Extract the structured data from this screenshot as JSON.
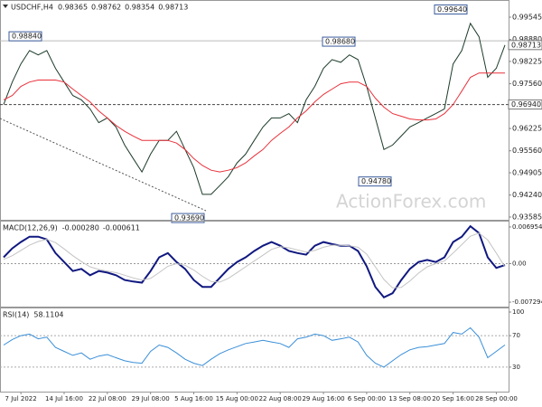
{
  "chart_data": [
    {
      "type": "line",
      "title": "USDCHF,H4",
      "ohlc": [
        0.98365,
        0.98762,
        0.98354,
        0.98713
      ],
      "watermark": "ActionForex.com",
      "categories": [
        null,
        null,
        "7 Jul 2022",
        null,
        null,
        null,
        null,
        "14 Jul 16:00",
        null,
        null,
        null,
        null,
        "22 Jul 08:00",
        null,
        null,
        null,
        null,
        "29 Jul 08:00",
        null,
        null,
        null,
        null,
        "5 Aug 16:00",
        null,
        null,
        null,
        null,
        "15 Aug 00:00",
        null,
        null,
        null,
        null,
        "22 Aug 08:00",
        null,
        null,
        null,
        null,
        "29 Aug 16:00",
        null,
        null,
        null,
        null,
        "6 Sep 00:00",
        null,
        null,
        null,
        null,
        "13 Sep 08:00",
        null,
        null,
        null,
        null,
        "20 Sep 16:00",
        null,
        null,
        null,
        null,
        "28 Sep 00:00",
        null
      ],
      "series": [
        {
          "color": "#1d3b2a",
          "values": [
            0.9694,
            0.9761,
            0.9815,
            0.9855,
            0.9842,
            0.9855,
            0.9802,
            0.9761,
            0.9721,
            0.9708,
            0.9681,
            0.964,
            0.9654,
            0.9627,
            0.9573,
            0.9533,
            0.9493,
            0.9546,
            0.9587,
            0.9587,
            0.9614,
            0.956,
            0.9506,
            0.9426,
            0.9426,
            0.9452,
            0.9479,
            0.952,
            0.9546,
            0.9587,
            0.9627,
            0.9654,
            0.9654,
            0.9667,
            0.964,
            0.9708,
            0.9748,
            0.9802,
            0.9828,
            0.982,
            0.9842,
            0.9828,
            0.9748,
            0.9654,
            0.956,
            0.9573,
            0.96,
            0.9627,
            0.964,
            0.9654,
            0.9667,
            0.9681,
            0.9815,
            0.9855,
            0.9936,
            0.9896,
            0.9775,
            0.9802,
            0.98713
          ]
        },
        {
          "color": "#e8303a",
          "values": [
            0.9708,
            0.9721,
            0.9748,
            0.9761,
            0.9767,
            0.9767,
            0.9767,
            0.9761,
            0.974,
            0.9721,
            0.9702,
            0.9675,
            0.9654,
            0.9632,
            0.9614,
            0.96,
            0.9587,
            0.9587,
            0.9587,
            0.9587,
            0.9579,
            0.956,
            0.9533,
            0.9512,
            0.9498,
            0.9493,
            0.9498,
            0.9506,
            0.952,
            0.9541,
            0.956,
            0.9587,
            0.9608,
            0.9627,
            0.9654,
            0.9675,
            0.9702,
            0.9724,
            0.974,
            0.9756,
            0.9761,
            0.9761,
            0.9748,
            0.9713,
            0.9686,
            0.9667,
            0.9659,
            0.9651,
            0.9648,
            0.9648,
            0.9651,
            0.9667,
            0.9694,
            0.9734,
            0.9775,
            0.9788,
            0.9788,
            0.9788,
            0.9788
          ]
        }
      ],
      "ylim": [
        0.9353,
        1.0003
      ],
      "yticks": [
        0.99545,
        {
          "value": 0.9888,
          "label": "0.98880"
        },
        0.98225,
        {
          "value": 0.9756,
          "label": "0.97560"
        },
        0.96895,
        0.96225,
        {
          "value": 0.9556,
          "label": "0.95560"
        },
        0.94905,
        {
          "value": 0.9424,
          "label": "0.94240"
        },
        0.93585
      ],
      "annotations": [
        {
          "value": 0.9884,
          "label": "0.98840"
        },
        {
          "value": 0.9868,
          "label": "0.98680"
        },
        {
          "value": 0.9964,
          "label": "0.99640"
        },
        {
          "value": 0.9478,
          "label": "0.94780"
        },
        {
          "value": 0.9369,
          "label": "0.93690"
        }
      ],
      "current_price": 0.98713,
      "level": {
        "value": 0.9694,
        "label": "0.96940"
      }
    },
    {
      "type": "line",
      "title": "MACD(12,26,9)",
      "readout": [
        {
          "value": -0.00028,
          "label": "-0.000280"
        },
        -0.000611
      ],
      "series": [
        {
          "color": "#101880",
          "values": [
            0.0012,
            0.0029,
            0.0041,
            0.0051,
            0.0051,
            0.0046,
            0.002,
            0.0003,
            -0.0014,
            -0.001,
            -0.0022,
            -0.0014,
            -0.0017,
            -0.0022,
            -0.0031,
            -0.0034,
            -0.0036,
            -0.0014,
            0.0012,
            0.002,
            0.0003,
            -0.001,
            -0.0031,
            -0.0044,
            -0.0044,
            -0.0027,
            -0.001,
            0.0003,
            0.0012,
            0.0024,
            0.0034,
            0.0041,
            0.0034,
            0.0024,
            0.002,
            0.0017,
            0.0034,
            0.0041,
            0.0037,
            0.0034,
            0.0034,
            0.0024,
            -0.0005,
            -0.0044,
            -0.0064,
            -0.0056,
            -0.0031,
            -0.001,
            0.0003,
            0.0007,
            0.0003,
            0.0012,
            0.0041,
            0.0051,
            0.0071,
            0.0058,
            0.0012,
            -0.0008,
            -0.00028
          ]
        },
        {
          "color": "#c4c4c4",
          "values": [
            0.0008,
            0.0015,
            0.0025,
            0.0035,
            0.0042,
            0.0046,
            0.004,
            0.0028,
            0.0015,
            0.0004,
            -0.0006,
            -0.0011,
            -0.0014,
            -0.0017,
            -0.0022,
            -0.0027,
            -0.0031,
            -0.0028,
            -0.0017,
            -0.0005,
            0.0,
            -0.0003,
            -0.0012,
            -0.0024,
            -0.0034,
            -0.0035,
            -0.0028,
            -0.0017,
            -0.0006,
            0.0005,
            0.0016,
            0.0027,
            0.0032,
            0.003,
            0.0026,
            0.0022,
            0.0025,
            0.0031,
            0.0035,
            0.0035,
            0.0034,
            0.0031,
            0.0018,
            -0.0006,
            -0.003,
            -0.0046,
            -0.0045,
            -0.0033,
            -0.0018,
            -0.0006,
            0.0,
            0.0005,
            0.002,
            0.0036,
            0.0052,
            0.0058,
            0.0045,
            0.002,
            -0.000611
          ]
        }
      ],
      "ylim": [
        -0.00797,
        0.00797
      ],
      "yticks": [
        0.006954,
        {
          "value": 0,
          "label": "0.00"
        },
        -0.007294
      ]
    },
    {
      "type": "line",
      "title": "RSI(14)",
      "readout": [
        58.1104
      ],
      "series": [
        {
          "color": "#3a8fd8",
          "values": [
            58,
            65,
            70,
            72,
            66,
            68,
            55,
            50,
            45,
            48,
            40,
            44,
            46,
            42,
            38,
            36,
            35,
            50,
            58,
            55,
            48,
            40,
            35,
            32,
            40,
            47,
            52,
            56,
            60,
            62,
            64,
            62,
            60,
            55,
            66,
            68,
            72,
            70,
            64,
            66,
            68,
            62,
            45,
            35,
            30,
            38,
            46,
            52,
            55,
            56,
            58,
            60,
            74,
            72,
            80,
            68,
            42,
            50,
            58.1104
          ]
        }
      ],
      "ylim": [
        0,
        100
      ],
      "yticks": [
        100,
        70,
        30
      ]
    }
  ]
}
